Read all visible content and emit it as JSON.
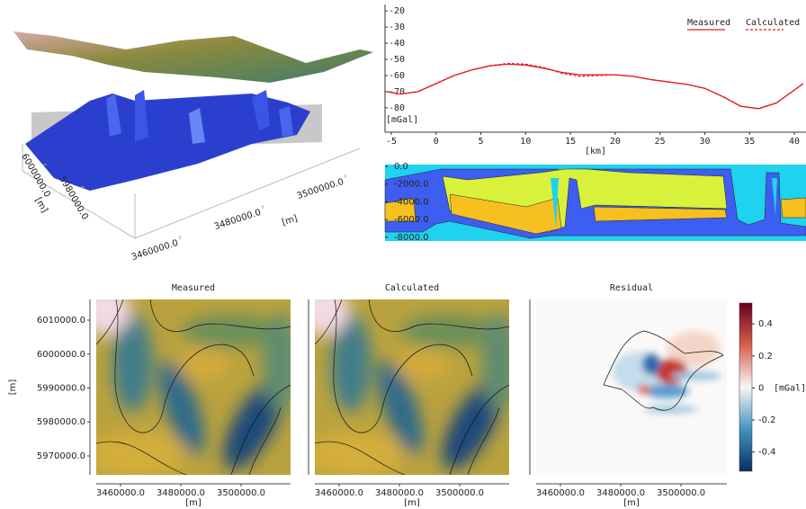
{
  "chart_data": [
    {
      "type": "line",
      "xlabel": "[km]",
      "ylabel": "[mGal]",
      "x": [
        -5.5,
        -4,
        -2,
        0,
        2,
        4,
        6,
        8,
        10,
        12,
        14,
        16,
        18,
        20,
        22,
        24,
        26,
        28,
        30,
        32,
        34,
        36,
        38,
        40,
        41
      ],
      "series": [
        {
          "name": "Measured",
          "color": "#e41a1c",
          "dashed": false,
          "values": [
            -70,
            -71.5,
            -70,
            -65,
            -60,
            -56.5,
            -54,
            -53,
            -53.5,
            -55.5,
            -58,
            -59.5,
            -59.5,
            -59.5,
            -60.5,
            -62.5,
            -64,
            -65.5,
            -68,
            -73,
            -79,
            -80.5,
            -77,
            -69,
            -65
          ]
        },
        {
          "name": "Calculated",
          "color": "#e41a1c",
          "dashed": true,
          "values": [
            -70,
            -71.5,
            -70,
            -65,
            -60,
            -56.5,
            -54,
            -52.5,
            -53,
            -55,
            -58.5,
            -60.5,
            -60,
            -59.5,
            -60.5,
            -62.5,
            -64,
            -65.5,
            -68,
            -73,
            -79,
            -80.5,
            -77,
            -69,
            -65
          ]
        }
      ],
      "xlim": [
        -5.7,
        41.3
      ],
      "ylim": [
        -94,
        -16
      ],
      "xticks": [
        -5,
        0,
        5,
        10,
        15,
        20,
        25,
        30,
        35,
        40
      ],
      "yticks": [
        -20,
        -30,
        -40,
        -50,
        -60,
        -70,
        -80
      ],
      "legend": "upper right"
    },
    {
      "type": "section",
      "ylim": [
        -8430,
        200
      ],
      "yticks": [
        {
          "value": 0,
          "label": "0.0"
        },
        {
          "value": -2000,
          "label": "-2000.0"
        },
        {
          "value": -4000,
          "label": "-4000.0"
        },
        {
          "value": -6000,
          "label": "-6000.0"
        },
        {
          "value": -8000,
          "label": "-8000.0"
        }
      ]
    },
    {
      "type": "heatmap",
      "title": "Measured",
      "colormap": "gist_earth",
      "xlabel": "[m]",
      "ylabel": "[m]",
      "xlim": [
        3451940,
        3516420
      ],
      "ylim": [
        5964430,
        6016100
      ],
      "xticks": [
        {
          "value": 3460000,
          "label": "3460000.0"
        },
        {
          "value": 3480000,
          "label": "3480000.0"
        },
        {
          "value": 3500000,
          "label": "3500000.0"
        }
      ],
      "yticks": [
        {
          "value": 6010000,
          "label": "6010000.0"
        },
        {
          "value": 6000000,
          "label": "6000000.0"
        },
        {
          "value": 5990000,
          "label": "5990000.0"
        },
        {
          "value": 5980000,
          "label": "5980000.0"
        },
        {
          "value": 5970000,
          "label": "5970000.0"
        }
      ]
    },
    {
      "type": "heatmap",
      "title": "Calculated",
      "colormap": "gist_earth",
      "xlabel": "[m]",
      "xlim": [
        3451940,
        3516420
      ],
      "ylim": [
        5964430,
        6016100
      ],
      "xticks": [
        {
          "value": 3460000,
          "label": "3460000.0"
        },
        {
          "value": 3480000,
          "label": "3480000.0"
        },
        {
          "value": 3500000,
          "label": "3500000.0"
        }
      ]
    },
    {
      "type": "heatmap",
      "title": "Residual",
      "colormap": "RdBu_r",
      "xlabel": "[m]",
      "xlim": [
        3451940,
        3515200
      ],
      "ylim": [
        5964430,
        6016100
      ],
      "xticks": [
        {
          "value": 3460000,
          "label": "3460000.0"
        },
        {
          "value": 3480000,
          "label": "3480000.0"
        },
        {
          "value": 3500000,
          "label": "3500000.0"
        }
      ],
      "colorbar": {
        "label": "[mGal]",
        "lim": [
          -0.52,
          0.53
        ],
        "ticks": [
          0.4,
          0.2,
          0,
          -0.2,
          -0.4
        ]
      }
    },
    {
      "type": "scene3d",
      "xlabel": "[m]",
      "ylabel": "[m]",
      "xticks": [
        {
          "value": 3460000,
          "label": "3460000.0"
        },
        {
          "value": 3480000,
          "label": "3480000.0"
        },
        {
          "value": 3500000,
          "label": "3500000.0"
        }
      ],
      "yticks": [
        {
          "value": 5980000,
          "label": "5980000.0"
        },
        {
          "value": 6000000,
          "label": "6000000.0"
        }
      ]
    }
  ]
}
